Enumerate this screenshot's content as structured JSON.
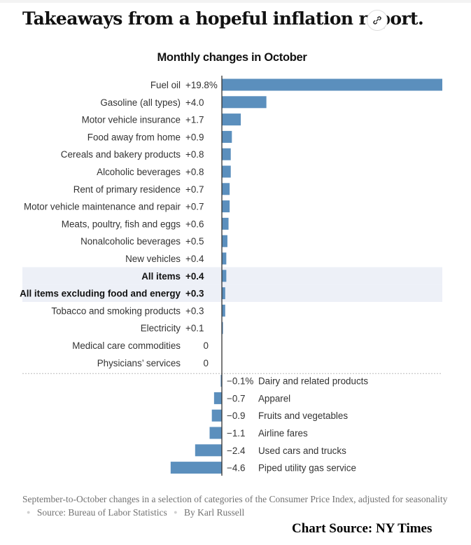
{
  "page": {
    "headline": "Takeaways from a hopeful inflation report.",
    "link_icon": "link-icon"
  },
  "chart_data": {
    "type": "bar",
    "orientation": "horizontal",
    "title": "Monthly changes in October",
    "unit": "%",
    "xlabel": "",
    "ylabel": "",
    "grid": false,
    "xlim": [
      -4.6,
      19.8
    ],
    "bar_color": "#5b8fbd",
    "highlight_color": "#edf0f7",
    "positive": [
      {
        "label": "Fuel oil",
        "value": 19.8,
        "display": "+19.8%"
      },
      {
        "label": "Gasoline (all types)",
        "value": 4.0,
        "display": "+4.0"
      },
      {
        "label": "Motor vehicle insurance",
        "value": 1.7,
        "display": "+1.7"
      },
      {
        "label": "Food away from home",
        "value": 0.9,
        "display": "+0.9"
      },
      {
        "label": "Cereals and bakery products",
        "value": 0.8,
        "display": "+0.8"
      },
      {
        "label": "Alcoholic beverages",
        "value": 0.8,
        "display": "+0.8"
      },
      {
        "label": "Rent of primary residence",
        "value": 0.7,
        "display": "+0.7"
      },
      {
        "label": "Motor vehicle maintenance and repair",
        "value": 0.7,
        "display": "+0.7"
      },
      {
        "label": "Meats, poultry, fish and eggs",
        "value": 0.6,
        "display": "+0.6"
      },
      {
        "label": "Nonalcoholic beverages",
        "value": 0.5,
        "display": "+0.5"
      },
      {
        "label": "New vehicles",
        "value": 0.4,
        "display": "+0.4"
      },
      {
        "label": "All items",
        "value": 0.4,
        "display": "+0.4",
        "highlight": true
      },
      {
        "label": "All items excluding food and energy",
        "value": 0.3,
        "display": "+0.3",
        "highlight": true
      },
      {
        "label": "Tobacco and smoking products",
        "value": 0.3,
        "display": "+0.3"
      },
      {
        "label": "Electricity",
        "value": 0.1,
        "display": "+0.1"
      },
      {
        "label": "Medical care commodities",
        "value": 0,
        "display": "0"
      },
      {
        "label": "Physicians’ services",
        "value": 0,
        "display": "0"
      }
    ],
    "negative": [
      {
        "label": "Dairy and related products",
        "value": -0.1,
        "display": "−0.1%"
      },
      {
        "label": "Apparel",
        "value": -0.7,
        "display": "−0.7"
      },
      {
        "label": "Fruits and vegetables",
        "value": -0.9,
        "display": "−0.9"
      },
      {
        "label": "Airline fares",
        "value": -1.1,
        "display": "−1.1"
      },
      {
        "label": "Used cars and trucks",
        "value": -2.4,
        "display": "−2.4"
      },
      {
        "label": "Piped utility gas service",
        "value": -4.6,
        "display": "−4.6"
      }
    ]
  },
  "footer": {
    "caption": "September-to-October changes in a selection of categories of the Consumer Price Index, adjusted for seasonality",
    "source": "Source: Bureau of Labor Statistics",
    "byline": "By Karl Russell",
    "separator": "●",
    "credit": "Chart Source:  NY Times"
  }
}
